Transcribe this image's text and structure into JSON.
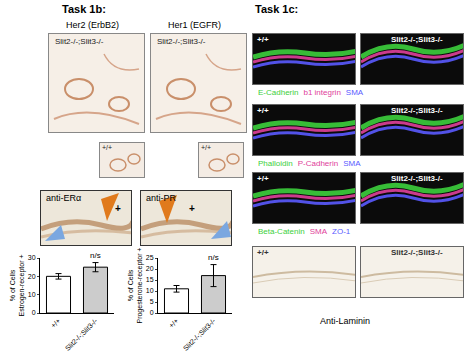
{
  "task_1b": {
    "label": "Task 1b:",
    "stains": [
      {
        "title": "Her2 (ErbB2)",
        "main": "Slit2-/-;Slit3-/-",
        "inset": "+/+"
      },
      {
        "title": "Her1 (EGFR)",
        "main": "Slit2-/-;Slit3-/-",
        "inset": "+/+"
      }
    ],
    "ihc": [
      {
        "label": "anti-ERα",
        "marker": "+"
      },
      {
        "label": "anti-PR",
        "marker": "+"
      }
    ]
  },
  "task_1c": {
    "label": "Task 1c:",
    "genotypes": [
      "+/+",
      "Slit2-/-;Slit3-/-"
    ],
    "rows": [
      {
        "channels": [
          {
            "text": "E-Cadherin",
            "color": "#3ccf3c"
          },
          {
            "text": "b1 integrin",
            "color": "#e0409a"
          },
          {
            "text": "SMA",
            "color": "#5a5aff"
          }
        ]
      },
      {
        "channels": [
          {
            "text": "Phalloidin",
            "color": "#3ccf3c"
          },
          {
            "text": "P-Cadherin",
            "color": "#e0409a"
          },
          {
            "text": "SMA",
            "color": "#5a5aff"
          }
        ]
      },
      {
        "channels": [
          {
            "text": "Beta-Catenin",
            "color": "#3ccf3c"
          },
          {
            "text": "SMA",
            "color": "#e0409a"
          },
          {
            "text": "ZO-1",
            "color": "#5a5aff"
          }
        ]
      },
      {
        "caption": "Anti-Laminin"
      }
    ]
  },
  "chart_data": [
    {
      "type": "bar",
      "ylabel": [
        "% of Cells",
        "Estrogen-receptor +"
      ],
      "categories": [
        "+/+",
        "Slit2-/-;Slit3-/-"
      ],
      "values": [
        20,
        25
      ],
      "errors": [
        1.5,
        2.5
      ],
      "colors": [
        "#ffffff",
        "#cccccc"
      ],
      "ylim": [
        0,
        30
      ],
      "yticks": [
        0,
        10,
        20,
        30
      ],
      "annotations": [
        {
          "text": "n/s",
          "category": "Slit2-/-;Slit3-/-"
        }
      ]
    },
    {
      "type": "bar",
      "ylabel": [
        "% of Cells",
        "Progesterone-receptor +"
      ],
      "categories": [
        "+/+",
        "Slit2-/-;Slit3-/-"
      ],
      "values": [
        11,
        17
      ],
      "errors": [
        1.5,
        5
      ],
      "colors": [
        "#ffffff",
        "#cccccc"
      ],
      "ylim": [
        0,
        25
      ],
      "yticks": [
        0,
        5,
        10,
        15,
        20,
        25
      ],
      "annotations": [
        {
          "text": "n/s",
          "category": "Slit2-/-;Slit3-/-"
        }
      ]
    }
  ]
}
